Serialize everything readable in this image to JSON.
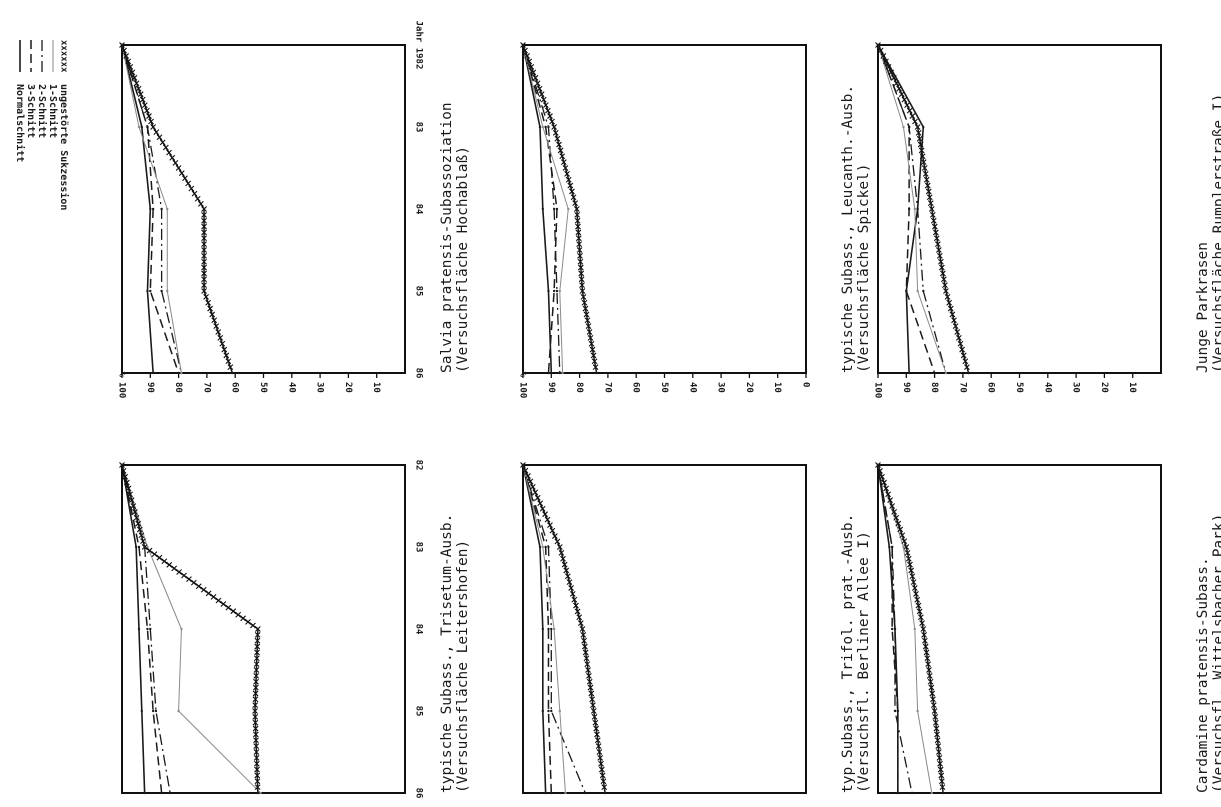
{
  "legend": [
    {
      "key": "normal",
      "label": "Normalschnitt",
      "color": "#1a1a1a",
      "dash": "",
      "width": 1.6
    },
    {
      "key": "s3",
      "label": "3-Schnitt",
      "color": "#1a1a1a",
      "dash": "9 5",
      "width": 1.5
    },
    {
      "key": "s2",
      "label": "2-Schnitt",
      "color": "#1a1a1a",
      "dash": "11 4 2 4",
      "width": 1.3
    },
    {
      "key": "s1",
      "label": "1-Schnitt",
      "color": "#8a8a8a",
      "dash": "",
      "width": 1.0
    },
    {
      "key": "suk",
      "label": "ungestörte Sukzession",
      "color": "#1a1a1a",
      "dash": "",
      "width": 1.5,
      "marker": "x"
    }
  ],
  "chart_data": [
    {
      "type": "line",
      "title": [
        "Salvia pratensis-Subassoziation",
        "(Versuchsfläche Hochablaß)"
      ],
      "x": [
        1982,
        1983,
        1984,
        1985,
        1986
      ],
      "xticklabels": [
        "Jahr 1982",
        "83",
        "84",
        "85",
        "86"
      ],
      "ylim": [
        0,
        100
      ],
      "yticks": [
        100,
        90,
        80,
        70,
        60,
        50,
        40,
        30,
        20,
        10
      ],
      "ylabel": "%",
      "series": [
        {
          "key": "normal",
          "values": [
            100,
            93,
            90,
            91,
            89
          ]
        },
        {
          "key": "s3",
          "values": [
            100,
            91,
            89,
            90,
            80
          ]
        },
        {
          "key": "s2",
          "values": [
            100,
            91,
            86,
            86,
            79
          ]
        },
        {
          "key": "s1",
          "values": [
            100,
            94,
            84,
            84,
            79
          ]
        },
        {
          "key": "suk",
          "values": [
            100,
            89,
            71,
            71,
            61
          ]
        }
      ]
    },
    {
      "type": "line",
      "title": [
        "typische Subass., Trisetum-Ausb.",
        "(Versuchsfläche Leitershofen)"
      ],
      "x": [
        1982,
        1983,
        1984,
        1985,
        1986
      ],
      "xticklabels": [
        "82",
        "83",
        "84",
        "85",
        "86"
      ],
      "ylim": [
        0,
        100
      ],
      "series": [
        {
          "key": "normal",
          "values": [
            100,
            95,
            94,
            93,
            92
          ]
        },
        {
          "key": "s3",
          "values": [
            100,
            94,
            91,
            89,
            86
          ]
        },
        {
          "key": "s2",
          "values": [
            100,
            92,
            90,
            88,
            83
          ]
        },
        {
          "key": "s1",
          "values": [
            100,
            91,
            79,
            80,
            51
          ]
        },
        {
          "key": "suk",
          "values": [
            100,
            92,
            52,
            53,
            52
          ]
        }
      ]
    },
    {
      "type": "line",
      "title": [
        "typische Subass., Leucanth.-Ausb.",
        "(Versuchsfläche Spickel)"
      ],
      "x": [
        1982,
        1983,
        1984,
        1985,
        1986
      ],
      "xticklabels": [
        "",
        "",
        "",
        "",
        ""
      ],
      "ylim": [
        0,
        100
      ],
      "yticks": [
        100,
        90,
        80,
        70,
        60,
        50,
        40,
        30,
        20,
        10,
        0
      ],
      "ylabel": "%",
      "series": [
        {
          "key": "normal",
          "values": [
            100,
            94,
            93,
            91,
            90
          ]
        },
        {
          "key": "s3",
          "values": [
            100,
            92,
            88,
            89,
            91
          ]
        },
        {
          "key": "s2",
          "values": [
            100,
            91,
            89,
            88,
            87
          ]
        },
        {
          "key": "s1",
          "values": [
            100,
            93,
            84,
            87,
            86
          ]
        },
        {
          "key": "suk",
          "values": [
            100,
            89,
            81,
            79,
            74
          ]
        }
      ]
    },
    {
      "type": "line",
      "title": [
        "typ.Subass., Trifol. prat.-Ausb.",
        "(Versuchsfl. Berliner Allee I)"
      ],
      "x": [
        1982,
        1983,
        1984,
        1985,
        1986
      ],
      "xticklabels": [
        "",
        "",
        "",
        "",
        ""
      ],
      "ylim": [
        0,
        100
      ],
      "series": [
        {
          "key": "normal",
          "values": [
            100,
            94,
            93,
            93,
            92
          ]
        },
        {
          "key": "s3",
          "values": [
            100,
            92,
            91,
            91,
            90
          ]
        },
        {
          "key": "s2",
          "values": [
            100,
            91,
            90,
            90,
            78
          ]
        },
        {
          "key": "s1",
          "values": [
            100,
            93,
            89,
            87,
            85
          ]
        },
        {
          "key": "suk",
          "values": [
            100,
            87,
            79,
            75,
            71
          ]
        }
      ]
    },
    {
      "type": "line",
      "title": [
        "Junge Parkrasen",
        "(Versuchsfläche Rumplerstraße I)"
      ],
      "x": [
        1982,
        1983,
        1984,
        1985,
        1986
      ],
      "xticklabels": [
        "",
        "",
        "",
        "",
        ""
      ],
      "ylim": [
        0,
        100
      ],
      "yticks": [
        100,
        90,
        80,
        70,
        60,
        50,
        40,
        30,
        20,
        10
      ],
      "series": [
        {
          "key": "normal",
          "values": [
            100,
            84,
            86,
            90,
            89
          ]
        },
        {
          "key": "s3",
          "values": [
            100,
            89,
            89,
            90,
            80
          ]
        },
        {
          "key": "s2",
          "values": [
            100,
            89,
            86,
            84,
            76
          ]
        },
        {
          "key": "s1",
          "values": [
            100,
            91,
            87,
            86,
            76
          ]
        },
        {
          "key": "suk",
          "values": [
            100,
            86,
            81,
            76,
            68
          ]
        }
      ]
    },
    {
      "type": "line",
      "title": [
        "Cardamine pratensis-Subass.",
        "(Versuchsfl. Wittelsbacher Park)"
      ],
      "x": [
        1982,
        1983,
        1984,
        1985,
        1986
      ],
      "xticklabels": [
        "",
        "",
        "",
        "",
        ""
      ],
      "ylim": [
        0,
        100
      ],
      "series": [
        {
          "key": "normal",
          "values": [
            100,
            96,
            94,
            93,
            93
          ]
        },
        {
          "key": "s3",
          "values": [
            100,
            95,
            95,
            93,
            93
          ]
        },
        {
          "key": "s2",
          "values": [
            100,
            95,
            94,
            94,
            88
          ]
        },
        {
          "key": "s1",
          "values": [
            100,
            91,
            87,
            86,
            81
          ]
        },
        {
          "key": "suk",
          "values": [
            100,
            90,
            84,
            80,
            77
          ]
        }
      ]
    }
  ]
}
